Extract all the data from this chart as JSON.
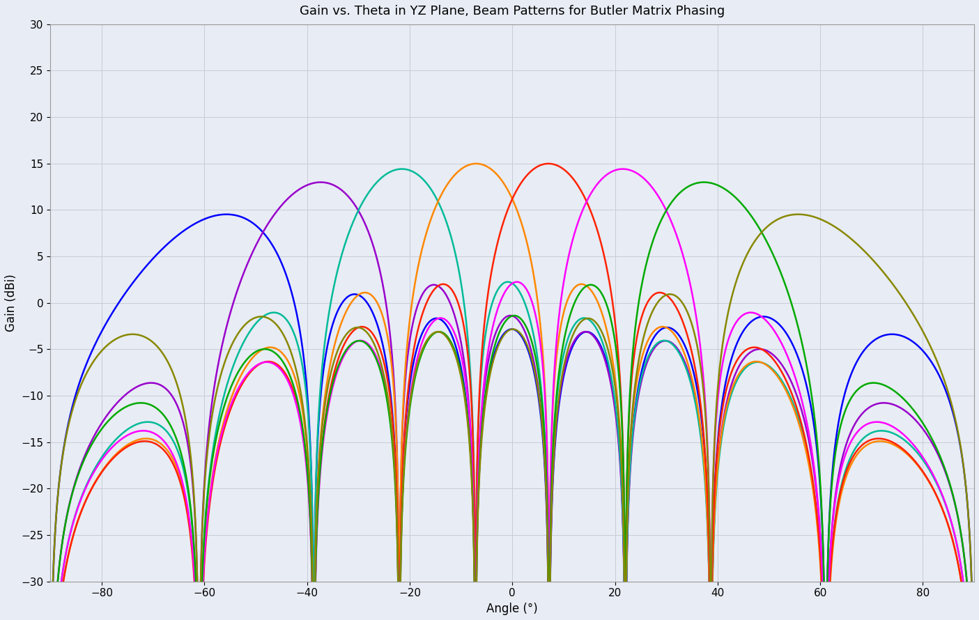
{
  "title": "Gain vs. Theta in YZ Plane, Beam Patterns for Butler Matrix Phasing",
  "xlabel": "Angle (°)",
  "ylabel": "Gain (dBi)",
  "xlim": [
    -90,
    90
  ],
  "ylim": [
    -30,
    30
  ],
  "N": 8,
  "d_over_lambda": 0.5,
  "beam_colors": [
    "#0000ff",
    "#9900cc",
    "#00bb99",
    "#ff8800",
    "#ff2200",
    "#ff00ff",
    "#00aa00",
    "#888800"
  ],
  "background_color": "#e8ecf4",
  "grid_color": "#c8ccd8",
  "title_fontsize": 13,
  "label_fontsize": 12,
  "tick_fontsize": 11,
  "xticks": [
    -80,
    -60,
    -40,
    -20,
    0,
    20,
    40,
    60,
    80
  ],
  "yticks": [
    -30,
    -25,
    -20,
    -15,
    -10,
    -5,
    0,
    5,
    10,
    15,
    20,
    25,
    30
  ],
  "linewidth": 1.8
}
